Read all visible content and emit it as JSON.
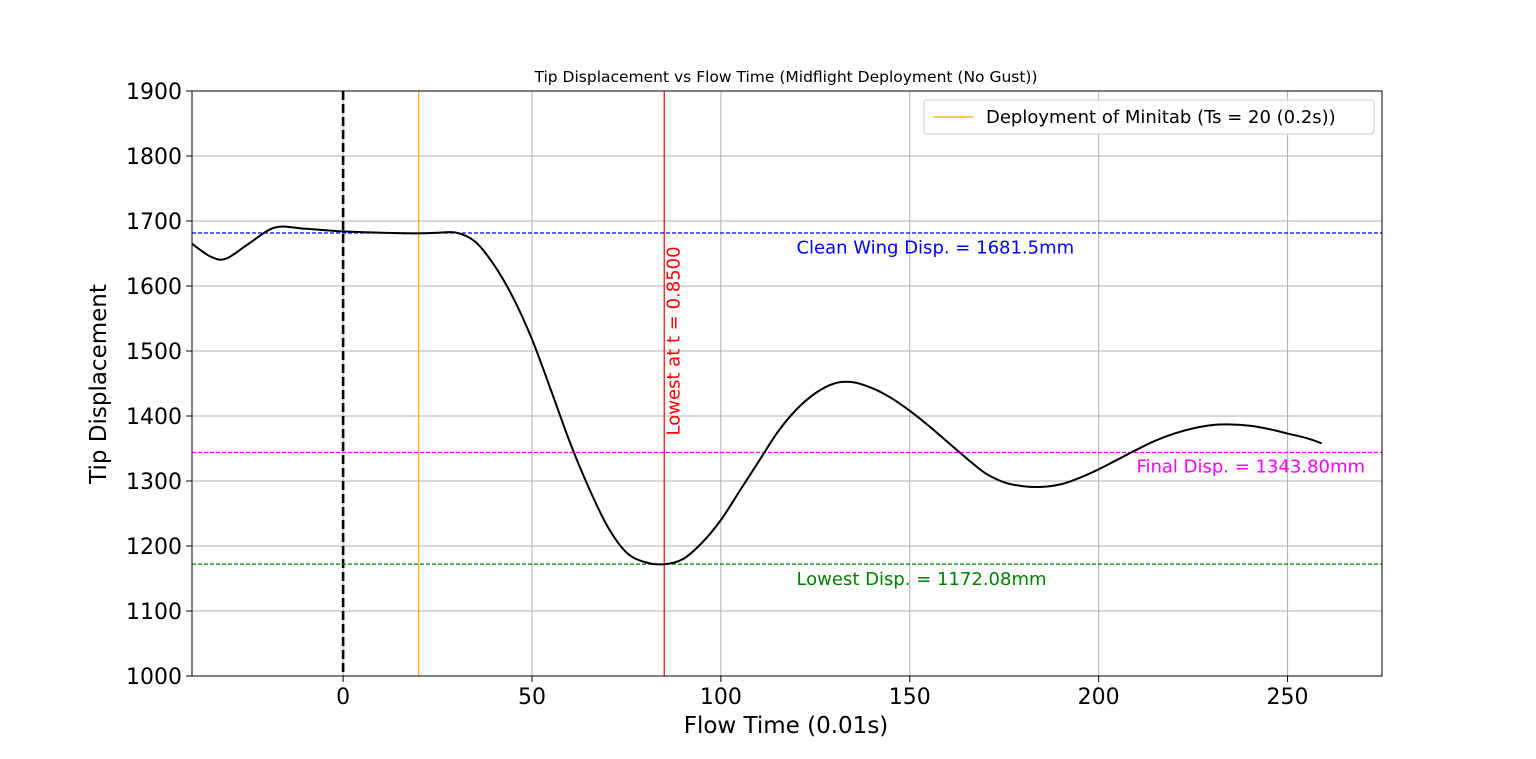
{
  "chart_data": {
    "type": "line",
    "title": "Tip Displacement vs Flow Time (Midflight Deployment (No Gust))",
    "xlabel": "Flow Time (0.01s)",
    "ylabel": "Tip Displacement",
    "xlim": [
      -40,
      275
    ],
    "ylim": [
      1000,
      1900
    ],
    "xticks": [
      0,
      50,
      100,
      150,
      200,
      250
    ],
    "yticks": [
      1000,
      1100,
      1200,
      1300,
      1400,
      1500,
      1600,
      1700,
      1800,
      1900
    ],
    "grid": true,
    "legend_placement": "top-right",
    "series": [
      {
        "color": "#000000",
        "x": [
          -40,
          -35,
          -31,
          -25,
          -18,
          -10,
          0,
          10,
          20,
          25,
          30,
          35,
          40,
          45,
          50,
          55,
          60,
          65,
          70,
          75,
          80,
          85,
          90,
          95,
          100,
          105,
          110,
          115,
          120,
          125,
          130,
          135,
          140,
          145,
          150,
          155,
          160,
          165,
          170,
          175,
          180,
          185,
          190,
          195,
          200,
          205,
          210,
          215,
          220,
          225,
          230,
          235,
          240,
          245,
          250,
          255,
          259
        ],
        "y": [
          1665,
          1645,
          1642,
          1665,
          1690,
          1688,
          1684,
          1682,
          1681,
          1682,
          1682,
          1668,
          1632,
          1582,
          1518,
          1440,
          1360,
          1290,
          1230,
          1190,
          1175,
          1172,
          1180,
          1205,
          1240,
          1285,
          1330,
          1375,
          1410,
          1435,
          1450,
          1452,
          1443,
          1428,
          1408,
          1385,
          1360,
          1335,
          1312,
          1298,
          1292,
          1291,
          1295,
          1305,
          1318,
          1333,
          1348,
          1362,
          1373,
          1381,
          1386,
          1387,
          1385,
          1380,
          1373,
          1366,
          1358
        ]
      }
    ],
    "reference_lines": [
      {
        "orientation": "vertical",
        "value": 0,
        "color": "#000000",
        "style": "dashed"
      },
      {
        "orientation": "vertical",
        "value": 20,
        "color": "#ffa500",
        "style": "solid",
        "legend": "Deployment of Minitab (Ts = 20 (0.2s))"
      },
      {
        "orientation": "vertical",
        "value": 85,
        "color": "#ff0000",
        "style": "solid"
      },
      {
        "orientation": "horizontal",
        "value": 1681.5,
        "color": "#0000ff",
        "style": "dashed"
      },
      {
        "orientation": "horizontal",
        "value": 1343.8,
        "color": "#ff00ff",
        "style": "dashed"
      },
      {
        "orientation": "horizontal",
        "value": 1172.08,
        "color": "#008000",
        "style": "dashed"
      }
    ],
    "annotations": [
      {
        "text": "Clean Wing Disp. = 1681.5mm",
        "x": 120,
        "y": 1650,
        "color": "#0000ff",
        "rotation": 0
      },
      {
        "text": "Final Disp. = 1343.80mm",
        "x": 210,
        "y": 1313,
        "color": "#ff00ff",
        "rotation": 0
      },
      {
        "text": "Lowest Disp. = 1172.08mm",
        "x": 120,
        "y": 1140,
        "color": "#008000",
        "rotation": 0
      },
      {
        "text": "Lowest at t = 0.8500",
        "x": 89,
        "y": 1370,
        "color": "#ff0000",
        "rotation": -90
      }
    ]
  }
}
